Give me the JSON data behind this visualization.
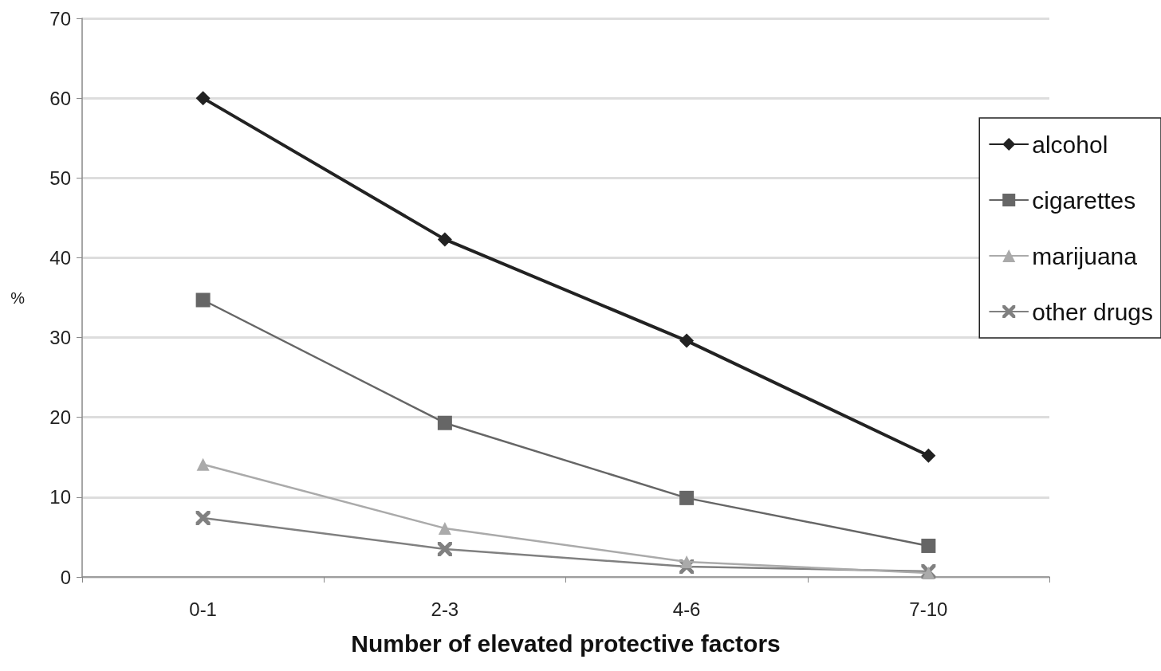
{
  "chart_data": {
    "type": "line",
    "xlabel": "Number of elevated protective factors",
    "ylabel": "%",
    "categories": [
      "0-1",
      "2-3",
      "4-6",
      "7-10"
    ],
    "series": [
      {
        "name": "alcohol",
        "color": "#222222",
        "marker": "diamond",
        "values": [
          60,
          42.3,
          29.6,
          15.2
        ]
      },
      {
        "name": "cigarettes",
        "color": "#666666",
        "marker": "square",
        "values": [
          34.7,
          19.3,
          9.9,
          3.9
        ]
      },
      {
        "name": "marijuana",
        "color": "#aaaaaa",
        "marker": "triangle",
        "values": [
          14.1,
          6.1,
          1.9,
          0.5
        ]
      },
      {
        "name": "other drugs",
        "color": "#808080",
        "marker": "cross",
        "values": [
          7.4,
          3.5,
          1.3,
          0.7
        ]
      }
    ],
    "ylim": [
      0,
      70
    ],
    "yticks": [
      0,
      10,
      20,
      30,
      40,
      50,
      60,
      70
    ],
    "grid": "y",
    "legend": "right"
  }
}
